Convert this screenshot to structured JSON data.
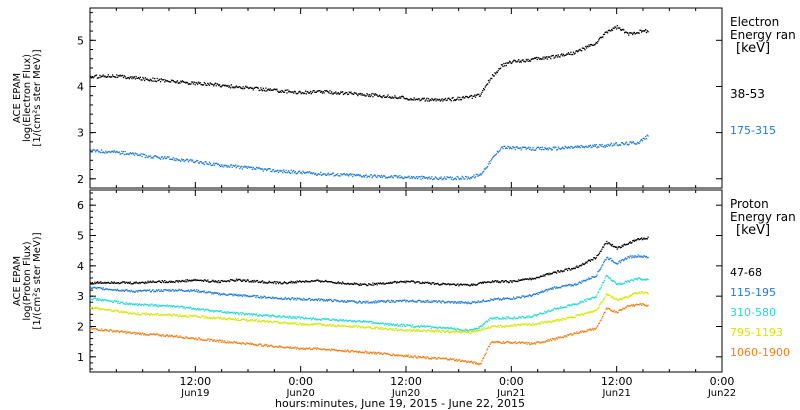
{
  "chart_data": [
    {
      "type": "scatter",
      "panel": "electron",
      "ylabel_lines": [
        "ACE EPAM",
        "log(Electron Flux)",
        "[1/(cm²s ster MeV)]"
      ],
      "ylim": [
        1.8,
        5.7
      ],
      "yticks": [
        2,
        3,
        4,
        5
      ],
      "legend_title_lines": [
        "Electron",
        "Energy ran",
        "[keV]"
      ],
      "series": [
        {
          "name": "38-53",
          "color": "#000000",
          "points": [
            [
              0,
              4.22
            ],
            [
              0.1,
              4.25
            ],
            [
              0.2,
              4.2
            ],
            [
              0.3,
              4.16
            ],
            [
              0.4,
              4.12
            ],
            [
              0.5,
              4.08
            ],
            [
              0.6,
              4.05
            ],
            [
              0.7,
              4.0
            ],
            [
              0.8,
              3.96
            ],
            [
              0.9,
              3.92
            ],
            [
              1.0,
              3.88
            ],
            [
              1.1,
              3.9
            ],
            [
              1.2,
              3.87
            ],
            [
              1.3,
              3.84
            ],
            [
              1.4,
              3.8
            ],
            [
              1.5,
              3.76
            ],
            [
              1.6,
              3.72
            ],
            [
              1.7,
              3.73
            ],
            [
              1.8,
              3.78
            ],
            [
              1.85,
              3.82
            ],
            [
              1.9,
              4.2
            ],
            [
              1.95,
              4.45
            ],
            [
              2.0,
              4.55
            ],
            [
              2.1,
              4.6
            ],
            [
              2.2,
              4.66
            ],
            [
              2.3,
              4.75
            ],
            [
              2.35,
              4.85
            ],
            [
              2.4,
              4.95
            ],
            [
              2.45,
              5.2
            ],
            [
              2.5,
              5.3
            ],
            [
              2.55,
              5.15
            ],
            [
              2.6,
              5.2
            ],
            [
              2.65,
              5.22
            ]
          ]
        },
        {
          "name": "175-315",
          "color": "#1e7ad6",
          "points": [
            [
              0,
              2.62
            ],
            [
              0.1,
              2.6
            ],
            [
              0.2,
              2.55
            ],
            [
              0.3,
              2.48
            ],
            [
              0.4,
              2.44
            ],
            [
              0.5,
              2.38
            ],
            [
              0.6,
              2.32
            ],
            [
              0.7,
              2.27
            ],
            [
              0.8,
              2.22
            ],
            [
              0.9,
              2.18
            ],
            [
              1.0,
              2.15
            ],
            [
              1.1,
              2.12
            ],
            [
              1.2,
              2.1
            ],
            [
              1.3,
              2.08
            ],
            [
              1.4,
              2.06
            ],
            [
              1.5,
              2.05
            ],
            [
              1.6,
              2.03
            ],
            [
              1.7,
              2.02
            ],
            [
              1.8,
              2.04
            ],
            [
              1.85,
              2.1
            ],
            [
              1.9,
              2.4
            ],
            [
              1.95,
              2.7
            ],
            [
              2.0,
              2.68
            ],
            [
              2.1,
              2.66
            ],
            [
              2.2,
              2.67
            ],
            [
              2.3,
              2.7
            ],
            [
              2.4,
              2.72
            ],
            [
              2.5,
              2.76
            ],
            [
              2.6,
              2.8
            ],
            [
              2.65,
              2.95
            ]
          ]
        }
      ]
    },
    {
      "type": "scatter",
      "panel": "proton",
      "ylabel_lines": [
        "ACE EPAM",
        "log(Proton Flux)",
        "[1/(cm²s ster MeV)]"
      ],
      "ylim": [
        0.5,
        6.5
      ],
      "yticks": [
        1,
        2,
        3,
        4,
        5,
        6
      ],
      "legend_title_lines": [
        "Proton",
        "Energy ran",
        "[keV]"
      ],
      "series": [
        {
          "name": "47-68",
          "color": "#000000",
          "points": [
            [
              0,
              3.45
            ],
            [
              0.1,
              3.48
            ],
            [
              0.2,
              3.45
            ],
            [
              0.3,
              3.5
            ],
            [
              0.4,
              3.5
            ],
            [
              0.5,
              3.55
            ],
            [
              0.6,
              3.5
            ],
            [
              0.7,
              3.55
            ],
            [
              0.8,
              3.5
            ],
            [
              0.9,
              3.45
            ],
            [
              1.0,
              3.5
            ],
            [
              1.1,
              3.52
            ],
            [
              1.2,
              3.45
            ],
            [
              1.3,
              3.4
            ],
            [
              1.4,
              3.45
            ],
            [
              1.5,
              3.5
            ],
            [
              1.6,
              3.45
            ],
            [
              1.7,
              3.4
            ],
            [
              1.8,
              3.38
            ],
            [
              1.9,
              3.5
            ],
            [
              2.0,
              3.5
            ],
            [
              2.1,
              3.6
            ],
            [
              2.2,
              3.8
            ],
            [
              2.3,
              3.95
            ],
            [
              2.4,
              4.3
            ],
            [
              2.45,
              4.8
            ],
            [
              2.5,
              4.6
            ],
            [
              2.55,
              4.75
            ],
            [
              2.6,
              4.9
            ],
            [
              2.65,
              4.95
            ]
          ]
        },
        {
          "name": "115-195",
          "color": "#1e7ad6",
          "points": [
            [
              0,
              3.3
            ],
            [
              0.1,
              3.25
            ],
            [
              0.2,
              3.18
            ],
            [
              0.3,
              3.2
            ],
            [
              0.4,
              3.22
            ],
            [
              0.5,
              3.2
            ],
            [
              0.6,
              3.1
            ],
            [
              0.7,
              3.05
            ],
            [
              0.8,
              3.0
            ],
            [
              0.9,
              2.95
            ],
            [
              1.0,
              2.92
            ],
            [
              1.1,
              2.9
            ],
            [
              1.2,
              2.85
            ],
            [
              1.3,
              2.82
            ],
            [
              1.4,
              2.85
            ],
            [
              1.5,
              2.86
            ],
            [
              1.6,
              2.85
            ],
            [
              1.7,
              2.82
            ],
            [
              1.8,
              2.8
            ],
            [
              1.9,
              2.9
            ],
            [
              2.0,
              2.95
            ],
            [
              2.1,
              3.05
            ],
            [
              2.2,
              3.3
            ],
            [
              2.3,
              3.4
            ],
            [
              2.4,
              3.7
            ],
            [
              2.45,
              4.3
            ],
            [
              2.5,
              4.1
            ],
            [
              2.55,
              4.3
            ],
            [
              2.6,
              4.35
            ],
            [
              2.65,
              4.3
            ]
          ]
        },
        {
          "name": "310-580",
          "color": "#22d7d7",
          "points": [
            [
              0,
              2.95
            ],
            [
              0.1,
              2.85
            ],
            [
              0.2,
              2.75
            ],
            [
              0.3,
              2.72
            ],
            [
              0.4,
              2.68
            ],
            [
              0.5,
              2.6
            ],
            [
              0.6,
              2.52
            ],
            [
              0.7,
              2.45
            ],
            [
              0.8,
              2.4
            ],
            [
              0.9,
              2.35
            ],
            [
              1.0,
              2.3
            ],
            [
              1.1,
              2.25
            ],
            [
              1.2,
              2.22
            ],
            [
              1.3,
              2.18
            ],
            [
              1.4,
              2.1
            ],
            [
              1.5,
              2.05
            ],
            [
              1.6,
              2.0
            ],
            [
              1.7,
              1.95
            ],
            [
              1.8,
              1.9
            ],
            [
              1.85,
              2.0
            ],
            [
              1.9,
              2.3
            ],
            [
              2.0,
              2.3
            ],
            [
              2.1,
              2.35
            ],
            [
              2.2,
              2.6
            ],
            [
              2.3,
              2.75
            ],
            [
              2.4,
              3.0
            ],
            [
              2.45,
              3.7
            ],
            [
              2.5,
              3.4
            ],
            [
              2.55,
              3.5
            ],
            [
              2.6,
              3.6
            ],
            [
              2.65,
              3.55
            ]
          ]
        },
        {
          "name": "795-1193",
          "color": "#d4e600",
          "points": [
            [
              0,
              2.65
            ],
            [
              0.1,
              2.55
            ],
            [
              0.2,
              2.45
            ],
            [
              0.3,
              2.42
            ],
            [
              0.4,
              2.4
            ],
            [
              0.5,
              2.35
            ],
            [
              0.6,
              2.3
            ],
            [
              0.7,
              2.25
            ],
            [
              0.8,
              2.2
            ],
            [
              0.9,
              2.15
            ],
            [
              1.0,
              2.1
            ],
            [
              1.1,
              2.08
            ],
            [
              1.2,
              2.03
            ],
            [
              1.3,
              2.0
            ],
            [
              1.4,
              1.95
            ],
            [
              1.5,
              1.9
            ],
            [
              1.6,
              1.88
            ],
            [
              1.7,
              1.85
            ],
            [
              1.8,
              1.82
            ],
            [
              1.9,
              2.0
            ],
            [
              2.0,
              2.05
            ],
            [
              2.1,
              2.1
            ],
            [
              2.2,
              2.2
            ],
            [
              2.3,
              2.35
            ],
            [
              2.4,
              2.55
            ],
            [
              2.45,
              3.1
            ],
            [
              2.5,
              2.9
            ],
            [
              2.55,
              3.0
            ],
            [
              2.6,
              3.15
            ],
            [
              2.65,
              3.1
            ]
          ]
        },
        {
          "name": "1060-1900",
          "color": "#f07d14",
          "points": [
            [
              0,
              1.95
            ],
            [
              0.1,
              1.88
            ],
            [
              0.2,
              1.8
            ],
            [
              0.3,
              1.75
            ],
            [
              0.4,
              1.7
            ],
            [
              0.5,
              1.62
            ],
            [
              0.6,
              1.55
            ],
            [
              0.7,
              1.48
            ],
            [
              0.8,
              1.42
            ],
            [
              0.9,
              1.35
            ],
            [
              1.0,
              1.3
            ],
            [
              1.1,
              1.28
            ],
            [
              1.2,
              1.22
            ],
            [
              1.3,
              1.18
            ],
            [
              1.4,
              1.12
            ],
            [
              1.5,
              1.05
            ],
            [
              1.6,
              0.98
            ],
            [
              1.7,
              0.95
            ],
            [
              1.8,
              0.85
            ],
            [
              1.85,
              0.78
            ],
            [
              1.9,
              1.5
            ],
            [
              2.0,
              1.5
            ],
            [
              2.1,
              1.45
            ],
            [
              2.2,
              1.6
            ],
            [
              2.3,
              1.8
            ],
            [
              2.4,
              1.95
            ],
            [
              2.45,
              2.6
            ],
            [
              2.5,
              2.5
            ],
            [
              2.55,
              2.7
            ],
            [
              2.6,
              2.75
            ],
            [
              2.65,
              2.72
            ]
          ]
        }
      ]
    }
  ],
  "xaxis": {
    "label": "hours:minutes, June 19, 2015 - June 22, 2015",
    "range_days": [
      0,
      3
    ],
    "ticks": [
      {
        "t": 0.5,
        "time": "12:00",
        "date": "Jun19"
      },
      {
        "t": 1.0,
        "time": "0:00",
        "date": "Jun20"
      },
      {
        "t": 1.5,
        "time": "12:00",
        "date": "Jun20"
      },
      {
        "t": 2.0,
        "time": "0:00",
        "date": "Jun21"
      },
      {
        "t": 2.5,
        "time": "12:00",
        "date": "Jun21"
      },
      {
        "t": 3.0,
        "time": "0:00",
        "date": "Jun22"
      }
    ]
  }
}
